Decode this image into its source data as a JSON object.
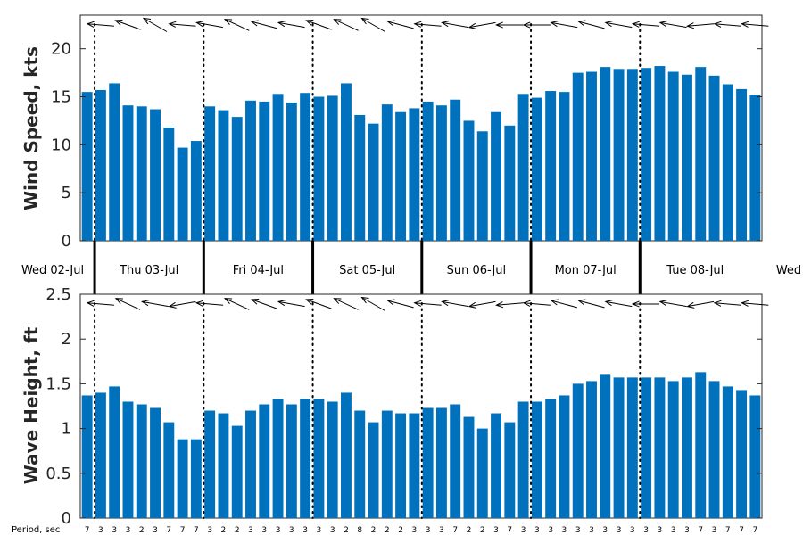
{
  "chart_data": [
    {
      "type": "bar",
      "ylabel": "Wind Speed, kts",
      "ylim": [
        0,
        23.5
      ],
      "yticks": [
        "0",
        "5",
        "10",
        "15",
        "20"
      ],
      "color": "#0072bd",
      "values": [
        15.5,
        15.7,
        16.4,
        14.1,
        14.0,
        13.7,
        11.8,
        9.7,
        10.4,
        14.0,
        13.6,
        12.9,
        14.6,
        14.5,
        15.3,
        14.4,
        15.4,
        15.0,
        15.1,
        16.4,
        13.1,
        12.2,
        14.2,
        13.4,
        13.8,
        14.5,
        14.1,
        14.7,
        12.5,
        11.4,
        13.4,
        12.0,
        15.3,
        14.9,
        15.6,
        15.5,
        17.5,
        17.6,
        18.1,
        17.9,
        17.9,
        18.0,
        18.2,
        17.6,
        17.3,
        18.1,
        17.2,
        16.3,
        15.8,
        15.2
      ],
      "direction_deg": [
        95,
        95,
        105,
        110,
        115,
        120,
        105,
        95,
        70,
        100,
        100,
        115,
        120,
        105,
        110,
        100,
        95,
        110,
        105,
        115,
        110,
        120,
        95,
        105,
        80,
        95,
        110,
        100,
        105,
        80,
        105,
        90,
        95,
        90,
        95,
        100,
        100,
        105,
        100,
        100,
        95,
        95,
        95,
        100,
        95,
        85,
        100,
        95,
        90,
        95
      ]
    },
    {
      "type": "bar",
      "ylabel": "Wave Height, ft",
      "xlabel": "Period, sec",
      "ylim": [
        0,
        2.5
      ],
      "yticks": [
        "0",
        "0.5",
        "1",
        "1.5",
        "2",
        "2.5"
      ],
      "color": "#0072bd",
      "values": [
        1.37,
        1.4,
        1.47,
        1.3,
        1.27,
        1.23,
        1.07,
        0.88,
        0.88,
        1.2,
        1.17,
        1.03,
        1.2,
        1.27,
        1.33,
        1.27,
        1.33,
        1.33,
        1.3,
        1.4,
        1.2,
        1.07,
        1.2,
        1.17,
        1.17,
        1.23,
        1.23,
        1.27,
        1.13,
        1.0,
        1.17,
        1.07,
        1.3,
        1.3,
        1.33,
        1.37,
        1.5,
        1.53,
        1.6,
        1.57,
        1.57,
        1.57,
        1.57,
        1.53,
        1.57,
        1.63,
        1.53,
        1.47,
        1.43,
        1.37
      ],
      "direction_deg": [
        95,
        95,
        110,
        115,
        120,
        100,
        80,
        80,
        70,
        95,
        100,
        115,
        120,
        110,
        100,
        100,
        95,
        110,
        100,
        115,
        110,
        120,
        75,
        105,
        80,
        95,
        110,
        100,
        105,
        80,
        95,
        85,
        95,
        95,
        100,
        105,
        100,
        105,
        95,
        100,
        95,
        90,
        95,
        100,
        70,
        80,
        85,
        95,
        90,
        95
      ],
      "periods": [
        "7",
        "3",
        "3",
        "3",
        "2",
        "3",
        "7",
        "7",
        "7",
        "3",
        "2",
        "2",
        "3",
        "3",
        "3",
        "3",
        "3",
        "3",
        "3",
        "2",
        "8",
        "2",
        "2",
        "2",
        "3",
        "3",
        "3",
        "7",
        "2",
        "2",
        "3",
        "7",
        "3",
        "3",
        "3",
        "3",
        "3",
        "3",
        "3",
        "3",
        "3",
        "3",
        "3",
        "3",
        "3",
        "7",
        "3",
        "7",
        "7",
        "7"
      ]
    }
  ],
  "days": [
    "Wed 02-Jul",
    "Thu 03-Jul",
    "Fri 04-Jul",
    "Sat 05-Jul",
    "Sun 06-Jul",
    "Mon 07-Jul",
    "Tue 08-Jul",
    "Wed"
  ],
  "bar_color": "#0072bd"
}
